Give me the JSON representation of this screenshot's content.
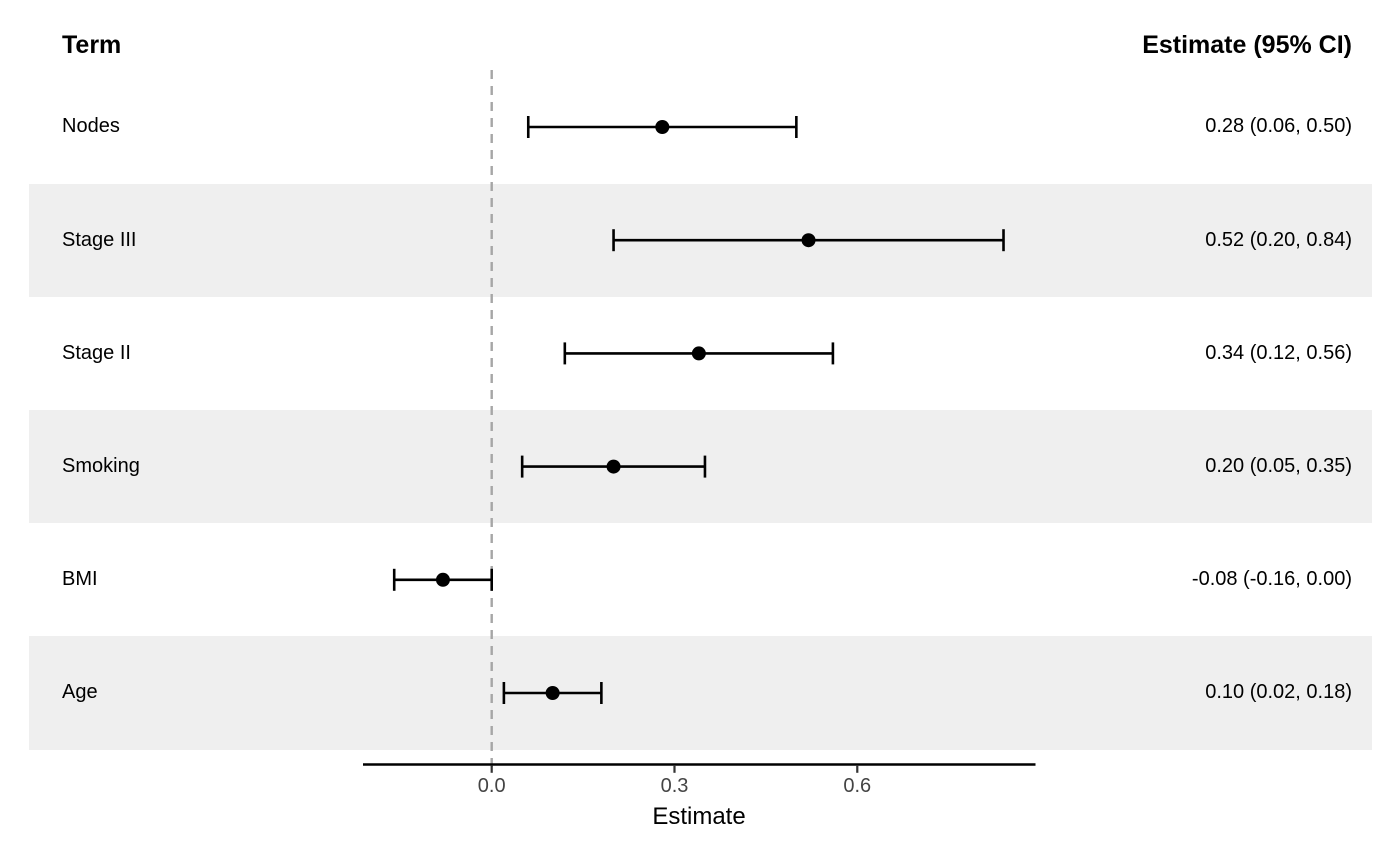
{
  "header": {
    "term_label": "Term",
    "estimate_label": "Estimate (95% CI)"
  },
  "chart_data": {
    "type": "forest",
    "orientation": "horizontal",
    "title": "",
    "xlabel": "Estimate",
    "x_ticks": [
      0.0,
      0.3,
      0.6
    ],
    "x_tick_labels": [
      "0.0",
      "0.3",
      "0.6"
    ],
    "xlim": [
      -0.21,
      0.89
    ],
    "reference_line_x": 0,
    "grid": false,
    "rows": [
      {
        "term": "Nodes",
        "estimate": 0.28,
        "ci_low": 0.06,
        "ci_high": 0.5,
        "label": "0.28 (0.06, 0.50)",
        "shaded": false
      },
      {
        "term": "Stage III",
        "estimate": 0.52,
        "ci_low": 0.2,
        "ci_high": 0.84,
        "label": "0.52 (0.20, 0.84)",
        "shaded": true
      },
      {
        "term": "Stage II",
        "estimate": 0.34,
        "ci_low": 0.12,
        "ci_high": 0.56,
        "label": "0.34 (0.12, 0.56)",
        "shaded": false
      },
      {
        "term": "Smoking",
        "estimate": 0.2,
        "ci_low": 0.05,
        "ci_high": 0.35,
        "label": "0.20 (0.05, 0.35)",
        "shaded": true
      },
      {
        "term": "BMI",
        "estimate": -0.08,
        "ci_low": -0.16,
        "ci_high": 0.0,
        "label": "-0.08 (-0.16, 0.00)",
        "shaded": false
      },
      {
        "term": "Age",
        "estimate": 0.1,
        "ci_low": 0.02,
        "ci_high": 0.18,
        "label": "0.10 (0.02, 0.18)",
        "shaded": true
      }
    ],
    "colors": {
      "marker": "#000000",
      "errorbar": "#000000",
      "stripe": "#efefef",
      "reference_line": "#a6a6a6",
      "axis_line": "#000000",
      "tick_label": "#444444"
    }
  }
}
